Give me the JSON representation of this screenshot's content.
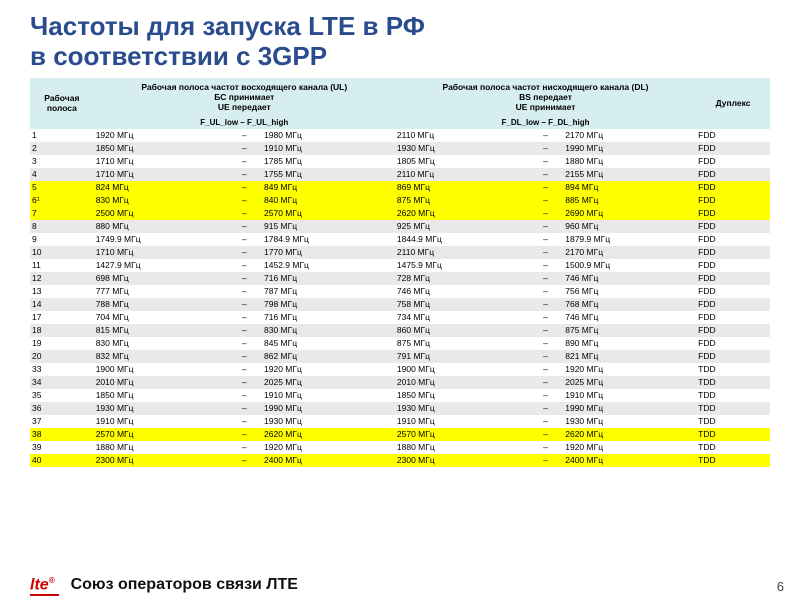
{
  "title_line1": "Частоты для запуска LTE в РФ",
  "title_line2": "в соответствии с 3GPP",
  "colors": {
    "title": "#2a4b8d",
    "header_bg": "#d7eef0",
    "row_alt": "#e9e9e9",
    "highlight": "#ffff00",
    "logo": "#c00000"
  },
  "headers": {
    "band": "Рабочая полоса",
    "ul": "Рабочая полоса частот восходящего канала (UL)\nБС принимает\nUE передает",
    "dl": "Рабочая полоса частот нисходящего канала (DL)\nBS передает\nUE принимает",
    "duplex": "Дуплекс",
    "ul_range": "F_UL_low – F_UL_high",
    "dl_range": "F_DL_low – F_DL_high"
  },
  "rows": [
    {
      "band": "1",
      "ul_lo": "1920 МГц",
      "ul_hi": "1980 МГц",
      "dl_lo": "2110 МГц",
      "dl_hi": "2170 МГц",
      "dup": "FDD",
      "cls": ""
    },
    {
      "band": "2",
      "ul_lo": "1850 МГц",
      "ul_hi": "1910 МГц",
      "dl_lo": "1930 МГц",
      "dl_hi": "1990 МГц",
      "dup": "FDD",
      "cls": "row-even"
    },
    {
      "band": "3",
      "ul_lo": "1710 МГц",
      "ul_hi": "1785 МГц",
      "dl_lo": "1805 МГц",
      "dl_hi": "1880 МГц",
      "dup": "FDD",
      "cls": ""
    },
    {
      "band": "4",
      "ul_lo": "1710 МГц",
      "ul_hi": "1755 МГц",
      "dl_lo": "2110 МГц",
      "dl_hi": "2155 МГц",
      "dup": "FDD",
      "cls": "row-even"
    },
    {
      "band": "5",
      "ul_lo": "824 МГц",
      "ul_hi": "849 МГц",
      "dl_lo": "869 МГц",
      "dl_hi": "894 МГц",
      "dup": "FDD",
      "cls": "row-hl"
    },
    {
      "band": "6¹",
      "ul_lo": "830 МГц",
      "ul_hi": "840 МГц",
      "dl_lo": "875 МГц",
      "dl_hi": "885 МГц",
      "dup": "FDD",
      "cls": "row-hl"
    },
    {
      "band": "7",
      "ul_lo": "2500 МГц",
      "ul_hi": "2570 МГц",
      "dl_lo": "2620 МГц",
      "dl_hi": "2690 МГц",
      "dup": "FDD",
      "cls": "row-hl"
    },
    {
      "band": "8",
      "ul_lo": "880 МГц",
      "ul_hi": "915 МГц",
      "dl_lo": "925 МГц",
      "dl_hi": "960 МГц",
      "dup": "FDD",
      "cls": "row-even"
    },
    {
      "band": "9",
      "ul_lo": "1749.9 МГц",
      "ul_hi": "1784.9 МГц",
      "dl_lo": "1844.9 МГц",
      "dl_hi": "1879.9 МГц",
      "dup": "FDD",
      "cls": ""
    },
    {
      "band": "10",
      "ul_lo": "1710 МГц",
      "ul_hi": "1770 МГц",
      "dl_lo": "2110 МГц",
      "dl_hi": "2170 МГц",
      "dup": "FDD",
      "cls": "row-even"
    },
    {
      "band": "11",
      "ul_lo": "1427.9 МГц",
      "ul_hi": "1452.9 МГц",
      "dl_lo": "1475.9 МГц",
      "dl_hi": "1500.9 МГц",
      "dup": "FDD",
      "cls": ""
    },
    {
      "band": "12",
      "ul_lo": "698 МГц",
      "ul_hi": "716 МГц",
      "dl_lo": "728 МГц",
      "dl_hi": "746 МГц",
      "dup": "FDD",
      "cls": "row-even"
    },
    {
      "band": "13",
      "ul_lo": "777 МГц",
      "ul_hi": "787 МГц",
      "dl_lo": "746 МГц",
      "dl_hi": "756 МГц",
      "dup": "FDD",
      "cls": ""
    },
    {
      "band": "14",
      "ul_lo": "788 МГц",
      "ul_hi": "798 МГц",
      "dl_lo": "758 МГц",
      "dl_hi": "768 МГц",
      "dup": "FDD",
      "cls": "row-even"
    },
    {
      "band": "17",
      "ul_lo": "704 МГц",
      "ul_hi": "716 МГц",
      "dl_lo": "734 МГц",
      "dl_hi": "746 МГц",
      "dup": "FDD",
      "cls": ""
    },
    {
      "band": "18",
      "ul_lo": "815 МГц",
      "ul_hi": "830 МГц",
      "dl_lo": "860 МГц",
      "dl_hi": "875 МГц",
      "dup": "FDD",
      "cls": "row-even"
    },
    {
      "band": "19",
      "ul_lo": "830 МГц",
      "ul_hi": "845 МГц",
      "dl_lo": "875 МГц",
      "dl_hi": "890 МГц",
      "dup": "FDD",
      "cls": ""
    },
    {
      "band": "20",
      "ul_lo": "832 МГц",
      "ul_hi": "862 МГц",
      "dl_lo": "791 МГц",
      "dl_hi": "821 МГц",
      "dup": "FDD",
      "cls": "row-even"
    },
    {
      "band": "33",
      "ul_lo": "1900 МГц",
      "ul_hi": "1920 МГц",
      "dl_lo": "1900 МГц",
      "dl_hi": "1920 МГц",
      "dup": "TDD",
      "cls": ""
    },
    {
      "band": "34",
      "ul_lo": "2010 МГц",
      "ul_hi": "2025 МГц",
      "dl_lo": "2010 МГц",
      "dl_hi": "2025 МГц",
      "dup": "TDD",
      "cls": "row-even"
    },
    {
      "band": "35",
      "ul_lo": "1850 МГц",
      "ul_hi": "1910 МГц",
      "dl_lo": "1850 МГц",
      "dl_hi": "1910 МГц",
      "dup": "TDD",
      "cls": ""
    },
    {
      "band": "36",
      "ul_lo": "1930 МГц",
      "ul_hi": "1990 МГц",
      "dl_lo": "1930 МГц",
      "dl_hi": "1990 МГц",
      "dup": "TDD",
      "cls": "row-even"
    },
    {
      "band": "37",
      "ul_lo": "1910 МГц",
      "ul_hi": "1930 МГц",
      "dl_lo": "1910 МГц",
      "dl_hi": "1930 МГц",
      "dup": "TDD",
      "cls": ""
    },
    {
      "band": "38",
      "ul_lo": "2570 МГц",
      "ul_hi": "2620 МГц",
      "dl_lo": "2570 МГц",
      "dl_hi": "2620 МГц",
      "dup": "TDD",
      "cls": "row-hl"
    },
    {
      "band": "39",
      "ul_lo": "1880 МГц",
      "ul_hi": "1920 МГц",
      "dl_lo": "1880 МГц",
      "dl_hi": "1920 МГц",
      "dup": "TDD",
      "cls": ""
    },
    {
      "band": "40",
      "ul_lo": "2300 МГц",
      "ul_hi": "2400 МГц",
      "dl_lo": "2300 МГц",
      "dl_hi": "2400 МГц",
      "dup": "TDD",
      "cls": "row-hl"
    }
  ],
  "footer": {
    "logo": "lte",
    "text": "Союз операторов связи ЛТЕ",
    "page": "6"
  }
}
